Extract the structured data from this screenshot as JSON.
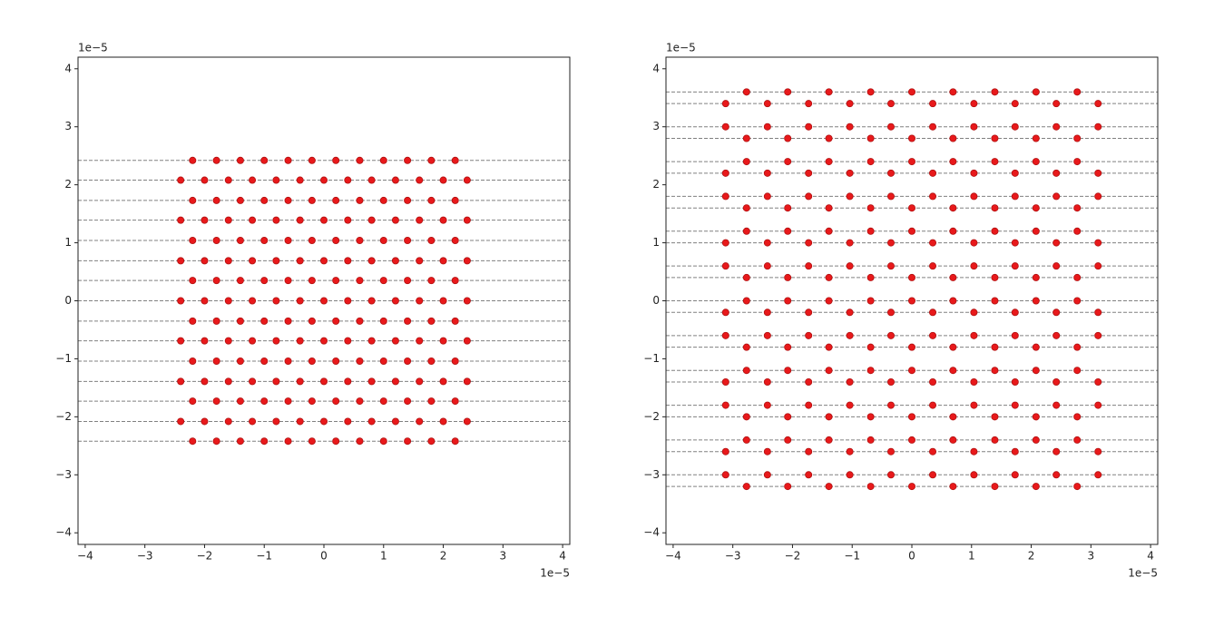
{
  "chart_data": [
    {
      "type": "scatter",
      "color": "#e8191b",
      "line_color": "#808080",
      "x_offset_label": "1e−5",
      "y_offset_label": "1e−5",
      "xlim": [
        -4.12,
        4.12
      ],
      "ylim": [
        -4.2,
        4.2
      ],
      "xticks": [
        {
          "value": -4,
          "label": "−4"
        },
        {
          "value": -3,
          "label": "−3"
        },
        {
          "value": -2,
          "label": "−2"
        },
        {
          "value": -1,
          "label": "−1"
        },
        0,
        1,
        2,
        3,
        4
      ],
      "yticks": [
        {
          "value": -4,
          "label": "−4"
        },
        {
          "value": -3,
          "label": "−3"
        },
        {
          "value": -2,
          "label": "−2"
        },
        {
          "value": -1,
          "label": "−1"
        },
        0,
        1,
        2,
        3,
        4
      ],
      "hlines": [
        2.42,
        2.08,
        1.73,
        1.39,
        1.04,
        0.69,
        0.35,
        0,
        -0.35,
        -0.69,
        -1.04,
        -1.39,
        -1.73,
        -2.08,
        -2.42
      ],
      "x": [
        -2.2,
        -1.8,
        -1.4,
        -1,
        -0.6,
        -0.2,
        0.2,
        0.6,
        1,
        1.4,
        1.8,
        2.2,
        -2.4,
        -2,
        -1.6,
        -1.2,
        -0.8,
        -0.4,
        0,
        0.4,
        0.8,
        1.2,
        1.6,
        2,
        2.4,
        -2.2,
        -1.8,
        -1.4,
        -1,
        -0.6,
        -0.2,
        0.2,
        0.6,
        1,
        1.4,
        1.8,
        2.2,
        -2.4,
        -2,
        -1.6,
        -1.2,
        -0.8,
        -0.4,
        0,
        0.4,
        0.8,
        1.2,
        1.6,
        2,
        2.4,
        -2.2,
        -1.8,
        -1.4,
        -1,
        -0.6,
        -0.2,
        0.2,
        0.6,
        1,
        1.4,
        1.8,
        2.2,
        -2.4,
        -2,
        -1.6,
        -1.2,
        -0.8,
        -0.4,
        0,
        0.4,
        0.8,
        1.2,
        1.6,
        2,
        2.4,
        -2.2,
        -1.8,
        -1.4,
        -1,
        -0.6,
        -0.2,
        0.2,
        0.6,
        1,
        1.4,
        1.8,
        2.2,
        -2.4,
        -2,
        -1.6,
        -1.2,
        -0.8,
        -0.4,
        0,
        0.4,
        0.8,
        1.2,
        1.6,
        2,
        2.4,
        -2.2,
        -1.8,
        -1.4,
        -1,
        -0.6,
        -0.2,
        0.2,
        0.6,
        1,
        1.4,
        1.8,
        2.2,
        -2.4,
        -2,
        -1.6,
        -1.2,
        -0.8,
        -0.4,
        0,
        0.4,
        0.8,
        1.2,
        1.6,
        2,
        2.4,
        -2.2,
        -1.8,
        -1.4,
        -1,
        -0.6,
        -0.2,
        0.2,
        0.6,
        1,
        1.4,
        1.8,
        2.2,
        -2.4,
        -2,
        -1.6,
        -1.2,
        -0.8,
        -0.4,
        0,
        0.4,
        0.8,
        1.2,
        1.6,
        2,
        2.4,
        -2.2,
        -1.8,
        -1.4,
        -1,
        -0.6,
        -0.2,
        0.2,
        0.6,
        1,
        1.4,
        1.8,
        2.2,
        -2.4,
        -2,
        -1.6,
        -1.2,
        -0.8,
        -0.4,
        0,
        0.4,
        0.8,
        1.2,
        1.6,
        2,
        2.4,
        -2.2,
        -1.8,
        -1.4,
        -1,
        -0.6,
        -0.2,
        0.2,
        0.6,
        1,
        1.4,
        1.8,
        2.2
      ],
      "y": [
        2.42,
        2.42,
        2.42,
        2.42,
        2.42,
        2.42,
        2.42,
        2.42,
        2.42,
        2.42,
        2.42,
        2.42,
        2.08,
        2.08,
        2.08,
        2.08,
        2.08,
        2.08,
        2.08,
        2.08,
        2.08,
        2.08,
        2.08,
        2.08,
        2.08,
        1.73,
        1.73,
        1.73,
        1.73,
        1.73,
        1.73,
        1.73,
        1.73,
        1.73,
        1.73,
        1.73,
        1.73,
        1.39,
        1.39,
        1.39,
        1.39,
        1.39,
        1.39,
        1.39,
        1.39,
        1.39,
        1.39,
        1.39,
        1.39,
        1.39,
        1.04,
        1.04,
        1.04,
        1.04,
        1.04,
        1.04,
        1.04,
        1.04,
        1.04,
        1.04,
        1.04,
        1.04,
        0.69,
        0.69,
        0.69,
        0.69,
        0.69,
        0.69,
        0.69,
        0.69,
        0.69,
        0.69,
        0.69,
        0.69,
        0.69,
        0.35,
        0.35,
        0.35,
        0.35,
        0.35,
        0.35,
        0.35,
        0.35,
        0.35,
        0.35,
        0.35,
        0.35,
        0,
        0,
        0,
        0,
        0,
        0,
        0,
        0,
        0,
        0,
        0,
        0,
        0,
        -0.35,
        -0.35,
        -0.35,
        -0.35,
        -0.35,
        -0.35,
        -0.35,
        -0.35,
        -0.35,
        -0.35,
        -0.35,
        -0.35,
        -0.69,
        -0.69,
        -0.69,
        -0.69,
        -0.69,
        -0.69,
        -0.69,
        -0.69,
        -0.69,
        -0.69,
        -0.69,
        -0.69,
        -0.69,
        -1.04,
        -1.04,
        -1.04,
        -1.04,
        -1.04,
        -1.04,
        -1.04,
        -1.04,
        -1.04,
        -1.04,
        -1.04,
        -1.04,
        -1.39,
        -1.39,
        -1.39,
        -1.39,
        -1.39,
        -1.39,
        -1.39,
        -1.39,
        -1.39,
        -1.39,
        -1.39,
        -1.39,
        -1.39,
        -1.73,
        -1.73,
        -1.73,
        -1.73,
        -1.73,
        -1.73,
        -1.73,
        -1.73,
        -1.73,
        -1.73,
        -1.73,
        -1.73,
        -2.08,
        -2.08,
        -2.08,
        -2.08,
        -2.08,
        -2.08,
        -2.08,
        -2.08,
        -2.08,
        -2.08,
        -2.08,
        -2.08,
        -2.08,
        -2.42,
        -2.42,
        -2.42,
        -2.42,
        -2.42,
        -2.42,
        -2.42,
        -2.42,
        -2.42,
        -2.42,
        -2.42,
        -2.42
      ]
    },
    {
      "type": "scatter",
      "color": "#e8191b",
      "line_color": "#808080",
      "x_offset_label": "1e−5",
      "y_offset_label": "1e−5",
      "xlim": [
        -4.12,
        4.12
      ],
      "ylim": [
        -4.2,
        4.2
      ],
      "xticks": [
        {
          "value": -4,
          "label": "−4"
        },
        {
          "value": -3,
          "label": "−3"
        },
        {
          "value": -2,
          "label": "−2"
        },
        {
          "value": -1,
          "label": "−1"
        },
        0,
        1,
        2,
        3,
        4
      ],
      "yticks": [
        {
          "value": -4,
          "label": "−4"
        },
        {
          "value": -3,
          "label": "−3"
        },
        {
          "value": -2,
          "label": "−2"
        },
        {
          "value": -1,
          "label": "−1"
        },
        0,
        1,
        2,
        3,
        4
      ],
      "hlines": [
        3.6,
        3.4,
        3.0,
        2.8,
        2.4,
        2.2,
        1.8,
        1.6,
        1.2,
        1.0,
        0.6,
        0.4,
        0,
        -0.2,
        -0.6,
        -0.8,
        -1.2,
        -1.4,
        -1.8,
        -2.0,
        -2.4,
        -2.6,
        -3.0,
        -3.2
      ],
      "x": [
        -2.77,
        -2.08,
        -1.39,
        -0.69,
        0,
        0.69,
        1.39,
        2.08,
        2.77,
        -3.12,
        -2.42,
        -1.73,
        -1.04,
        -0.35,
        0.35,
        1.04,
        1.73,
        2.42,
        3.12,
        -3.12,
        -2.42,
        -1.73,
        -1.04,
        -0.35,
        0.35,
        1.04,
        1.73,
        2.42,
        3.12,
        -2.77,
        -2.08,
        -1.39,
        -0.69,
        0,
        0.69,
        1.39,
        2.08,
        2.77,
        -2.77,
        -2.08,
        -1.39,
        -0.69,
        0,
        0.69,
        1.39,
        2.08,
        2.77,
        -3.12,
        -2.42,
        -1.73,
        -1.04,
        -0.35,
        0.35,
        1.04,
        1.73,
        2.42,
        3.12,
        -3.12,
        -2.42,
        -1.73,
        -1.04,
        -0.35,
        0.35,
        1.04,
        1.73,
        2.42,
        3.12,
        -2.77,
        -2.08,
        -1.39,
        -0.69,
        0,
        0.69,
        1.39,
        2.08,
        2.77,
        -2.77,
        -2.08,
        -1.39,
        -0.69,
        0,
        0.69,
        1.39,
        2.08,
        2.77,
        -3.12,
        -2.42,
        -1.73,
        -1.04,
        -0.35,
        0.35,
        1.04,
        1.73,
        2.42,
        3.12,
        -3.12,
        -2.42,
        -1.73,
        -1.04,
        -0.35,
        0.35,
        1.04,
        1.73,
        2.42,
        3.12,
        -2.77,
        -2.08,
        -1.39,
        -0.69,
        0,
        0.69,
        1.39,
        2.08,
        2.77,
        -2.77,
        -2.08,
        -1.39,
        -0.69,
        0,
        0.69,
        1.39,
        2.08,
        2.77,
        -3.12,
        -2.42,
        -1.73,
        -1.04,
        -0.35,
        0.35,
        1.04,
        1.73,
        2.42,
        3.12,
        -3.12,
        -2.42,
        -1.73,
        -1.04,
        -0.35,
        0.35,
        1.04,
        1.73,
        2.42,
        3.12,
        -2.77,
        -2.08,
        -1.39,
        -0.69,
        0,
        0.69,
        1.39,
        2.08,
        2.77,
        -2.77,
        -2.08,
        -1.39,
        -0.69,
        0,
        0.69,
        1.39,
        2.08,
        2.77,
        -3.12,
        -2.42,
        -1.73,
        -1.04,
        -0.35,
        0.35,
        1.04,
        1.73,
        2.42,
        3.12,
        -3.12,
        -2.42,
        -1.73,
        -1.04,
        -0.35,
        0.35,
        1.04,
        1.73,
        2.42,
        3.12,
        -2.77,
        -2.08,
        -1.39,
        -0.69,
        0,
        0.69,
        1.39,
        2.08,
        2.77,
        -2.77,
        -2.08,
        -1.39,
        -0.69,
        0,
        0.69,
        1.39,
        2.08,
        2.77,
        -3.12,
        -2.42,
        -1.73,
        -1.04,
        -0.35,
        0.35,
        1.04,
        1.73,
        2.42,
        3.12,
        -3.12,
        -2.42,
        -1.73,
        -1.04,
        -0.35,
        0.35,
        1.04,
        1.73,
        2.42,
        3.12,
        -2.77,
        -2.08,
        -1.39,
        -0.69,
        0,
        0.69,
        1.39,
        2.08,
        2.77
      ],
      "y": [
        3.6,
        3.6,
        3.6,
        3.6,
        3.6,
        3.6,
        3.6,
        3.6,
        3.6,
        3.4,
        3.4,
        3.4,
        3.4,
        3.4,
        3.4,
        3.4,
        3.4,
        3.4,
        3.4,
        3.0,
        3.0,
        3.0,
        3.0,
        3.0,
        3.0,
        3.0,
        3.0,
        3.0,
        3.0,
        2.8,
        2.8,
        2.8,
        2.8,
        2.8,
        2.8,
        2.8,
        2.8,
        2.8,
        2.4,
        2.4,
        2.4,
        2.4,
        2.4,
        2.4,
        2.4,
        2.4,
        2.4,
        2.2,
        2.2,
        2.2,
        2.2,
        2.2,
        2.2,
        2.2,
        2.2,
        2.2,
        2.2,
        1.8,
        1.8,
        1.8,
        1.8,
        1.8,
        1.8,
        1.8,
        1.8,
        1.8,
        1.8,
        1.6,
        1.6,
        1.6,
        1.6,
        1.6,
        1.6,
        1.6,
        1.6,
        1.6,
        1.2,
        1.2,
        1.2,
        1.2,
        1.2,
        1.2,
        1.2,
        1.2,
        1.2,
        1.0,
        1.0,
        1.0,
        1.0,
        1.0,
        1.0,
        1.0,
        1.0,
        1.0,
        1.0,
        0.6,
        0.6,
        0.6,
        0.6,
        0.6,
        0.6,
        0.6,
        0.6,
        0.6,
        0.6,
        0.4,
        0.4,
        0.4,
        0.4,
        0.4,
        0.4,
        0.4,
        0.4,
        0.4,
        0,
        0,
        0,
        0,
        0,
        0,
        0,
        0,
        0,
        -0.2,
        -0.2,
        -0.2,
        -0.2,
        -0.2,
        -0.2,
        -0.2,
        -0.2,
        -0.2,
        -0.2,
        -0.6,
        -0.6,
        -0.6,
        -0.6,
        -0.6,
        -0.6,
        -0.6,
        -0.6,
        -0.6,
        -0.6,
        -0.8,
        -0.8,
        -0.8,
        -0.8,
        -0.8,
        -0.8,
        -0.8,
        -0.8,
        -0.8,
        -1.2,
        -1.2,
        -1.2,
        -1.2,
        -1.2,
        -1.2,
        -1.2,
        -1.2,
        -1.2,
        -1.4,
        -1.4,
        -1.4,
        -1.4,
        -1.4,
        -1.4,
        -1.4,
        -1.4,
        -1.4,
        -1.4,
        -1.8,
        -1.8,
        -1.8,
        -1.8,
        -1.8,
        -1.8,
        -1.8,
        -1.8,
        -1.8,
        -1.8,
        -2.0,
        -2.0,
        -2.0,
        -2.0,
        -2.0,
        -2.0,
        -2.0,
        -2.0,
        -2.0,
        -2.4,
        -2.4,
        -2.4,
        -2.4,
        -2.4,
        -2.4,
        -2.4,
        -2.4,
        -2.4,
        -2.6,
        -2.6,
        -2.6,
        -2.6,
        -2.6,
        -2.6,
        -2.6,
        -2.6,
        -2.6,
        -2.6,
        -3.0,
        -3.0,
        -3.0,
        -3.0,
        -3.0,
        -3.0,
        -3.0,
        -3.0,
        -3.0,
        -3.0,
        -3.2,
        -3.2,
        -3.2,
        -3.2,
        -3.2,
        -3.2,
        -3.2,
        -3.2,
        -3.2
      ]
    }
  ]
}
